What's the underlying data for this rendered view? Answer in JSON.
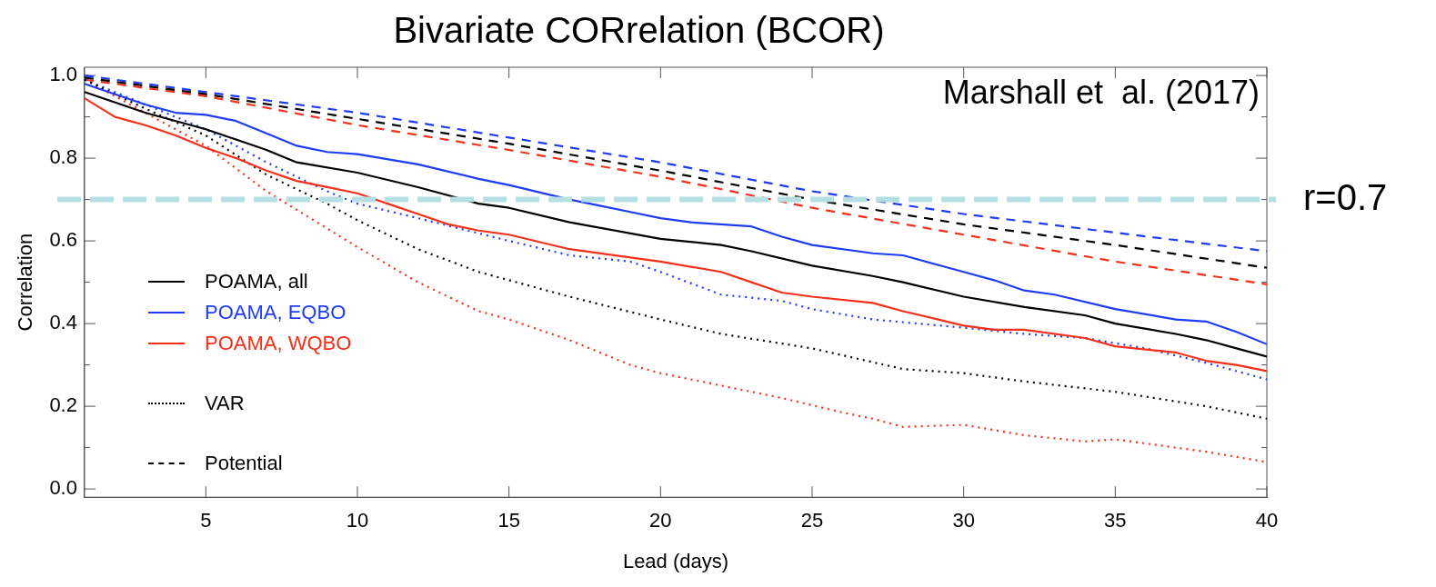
{
  "chart_data": {
    "type": "line",
    "title": "Bivariate CORrelation (BCOR)",
    "xlabel": "Lead (days)",
    "ylabel": "Correlation",
    "xlim": [
      1,
      40
    ],
    "ylim": [
      -0.02,
      1.02
    ],
    "xticks": [
      5,
      10,
      15,
      20,
      25,
      30,
      35,
      40
    ],
    "yticks": [
      {
        "value": 0,
        "label": "0.0"
      },
      {
        "value": 0.1,
        "label": null
      },
      {
        "value": 0.2,
        "label": "0.2"
      },
      {
        "value": 0.3,
        "label": null
      },
      {
        "value": 0.4,
        "label": "0.4"
      },
      {
        "value": 0.5,
        "label": null
      },
      {
        "value": 0.6,
        "label": "0.6"
      },
      {
        "value": 0.7,
        "label": null
      },
      {
        "value": 0.8,
        "label": "0.8"
      },
      {
        "value": 0.9,
        "label": null
      },
      {
        "value": 1,
        "label": "1.0"
      }
    ],
    "grid": false,
    "legend": "center left",
    "annotations": [
      "Marshall et  al. (2017)"
    ],
    "ref_lines": [
      {
        "axis": "y",
        "value": 0.7,
        "label": "r=0.7",
        "color": "#b5dfe2",
        "line_style": "dashed"
      }
    ],
    "series": [
      {
        "name": "POAMA, all",
        "color": "#000000",
        "line_style": "solid",
        "x": [
          1,
          3,
          5,
          7,
          8,
          10,
          12,
          14,
          15,
          17,
          20,
          22,
          23,
          25,
          27,
          28,
          30,
          32,
          34,
          35,
          37,
          38,
          39,
          40
        ],
        "values": [
          0.96,
          0.91,
          0.87,
          0.82,
          0.79,
          0.765,
          0.73,
          0.69,
          0.68,
          0.645,
          0.605,
          0.59,
          0.575,
          0.54,
          0.515,
          0.5,
          0.465,
          0.44,
          0.42,
          0.4,
          0.375,
          0.36,
          0.34,
          0.32
        ]
      },
      {
        "name": "POAMA, EQBO",
        "color": "#1f3cf5",
        "line_style": "solid",
        "x": [
          1,
          3,
          4,
          5,
          6,
          7,
          8,
          9,
          10,
          12,
          14,
          15,
          17,
          18,
          19,
          20,
          21,
          23,
          24,
          25,
          27,
          28,
          30,
          31,
          32,
          33,
          35,
          37,
          38,
          39,
          40
        ],
        "values": [
          0.98,
          0.93,
          0.91,
          0.905,
          0.89,
          0.86,
          0.83,
          0.815,
          0.81,
          0.785,
          0.75,
          0.735,
          0.7,
          0.685,
          0.67,
          0.655,
          0.645,
          0.635,
          0.61,
          0.59,
          0.57,
          0.565,
          0.525,
          0.505,
          0.48,
          0.47,
          0.435,
          0.41,
          0.405,
          0.38,
          0.35
        ]
      },
      {
        "name": "POAMA, WQBO",
        "color": "#f5301a",
        "line_style": "solid",
        "x": [
          1,
          2,
          3,
          4,
          5,
          6,
          7,
          8,
          9,
          10,
          11,
          12,
          13,
          14,
          15,
          17,
          19,
          20,
          22,
          23,
          24,
          25,
          27,
          28,
          30,
          31,
          32,
          34,
          35,
          37,
          38,
          39,
          40
        ],
        "values": [
          0.945,
          0.9,
          0.88,
          0.855,
          0.825,
          0.8,
          0.77,
          0.745,
          0.73,
          0.715,
          0.69,
          0.665,
          0.64,
          0.625,
          0.615,
          0.58,
          0.56,
          0.55,
          0.525,
          0.5,
          0.475,
          0.465,
          0.45,
          0.43,
          0.395,
          0.385,
          0.385,
          0.365,
          0.345,
          0.33,
          0.31,
          0.3,
          0.285
        ]
      },
      {
        "name": "VAR",
        "color": "#000000",
        "line_style": "dotted",
        "x": [
          1,
          3,
          5,
          7,
          9,
          10,
          12,
          14,
          15,
          17,
          20,
          22,
          25,
          28,
          30,
          32,
          35,
          38,
          40
        ],
        "values": [
          0.99,
          0.92,
          0.855,
          0.76,
          0.69,
          0.65,
          0.58,
          0.525,
          0.505,
          0.465,
          0.41,
          0.375,
          0.34,
          0.29,
          0.28,
          0.26,
          0.235,
          0.2,
          0.17
        ]
      },
      {
        "color": "#1f3cf5",
        "line_style": "dotted",
        "x": [
          1,
          3,
          5,
          7,
          9,
          10,
          12,
          15,
          17,
          19,
          20,
          22,
          24,
          25,
          27,
          30,
          32,
          34,
          36,
          38,
          40
        ],
        "values": [
          0.99,
          0.93,
          0.87,
          0.79,
          0.72,
          0.69,
          0.655,
          0.6,
          0.565,
          0.55,
          0.525,
          0.47,
          0.455,
          0.435,
          0.41,
          0.39,
          0.375,
          0.365,
          0.34,
          0.305,
          0.265
        ]
      },
      {
        "color": "#f5301a",
        "line_style": "dotted",
        "x": [
          1,
          3,
          5,
          7,
          9,
          10,
          12,
          14,
          15,
          17,
          19,
          20,
          22,
          24,
          26,
          27,
          28,
          30,
          32,
          34,
          35,
          36,
          38,
          40
        ],
        "values": [
          0.99,
          0.91,
          0.83,
          0.72,
          0.63,
          0.585,
          0.5,
          0.43,
          0.41,
          0.36,
          0.3,
          0.28,
          0.25,
          0.22,
          0.185,
          0.17,
          0.15,
          0.155,
          0.13,
          0.115,
          0.12,
          0.11,
          0.09,
          0.065
        ]
      },
      {
        "name": "Potential",
        "color": "#000000",
        "line_style": "dashed",
        "x": [
          1,
          5,
          10,
          15,
          20,
          25,
          30,
          35,
          40
        ],
        "values": [
          0.995,
          0.955,
          0.895,
          0.835,
          0.77,
          0.7,
          0.64,
          0.59,
          0.535
        ]
      },
      {
        "color": "#1f3cf5",
        "line_style": "dashed",
        "x": [
          1,
          5,
          10,
          15,
          20,
          25,
          30,
          35,
          40
        ],
        "values": [
          1.0,
          0.96,
          0.91,
          0.85,
          0.79,
          0.72,
          0.665,
          0.62,
          0.575
        ]
      },
      {
        "color": "#f5301a",
        "line_style": "dashed",
        "x": [
          1,
          5,
          10,
          15,
          20,
          25,
          30,
          35,
          40
        ],
        "values": [
          0.99,
          0.95,
          0.88,
          0.82,
          0.755,
          0.68,
          0.615,
          0.55,
          0.495
        ]
      }
    ]
  }
}
